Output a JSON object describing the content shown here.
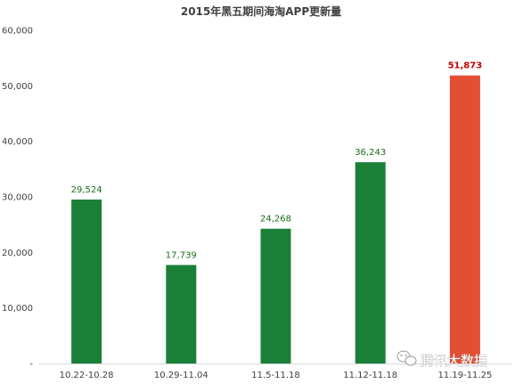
{
  "chart_data": {
    "type": "bar",
    "title": "2015年黑五期间海淘APP更新量",
    "xlabel": "",
    "ylabel": "",
    "categories": [
      "10.22-10.28",
      "10.29-11.04",
      "11.5-11.18",
      "11.12-11.18",
      "11.19-11.25"
    ],
    "values": [
      29524,
      17739,
      24268,
      36243,
      51873
    ],
    "data_labels": [
      "29,524",
      "17,739",
      "24,268",
      "36,243",
      "51,873"
    ],
    "ylim": [
      0,
      60000
    ],
    "yticks": [
      0,
      10000,
      20000,
      30000,
      40000,
      50000,
      60000
    ],
    "ytick_labels": [
      "-",
      "10,000",
      "20,000",
      "30,000",
      "40,000",
      "50,000",
      "60,000"
    ],
    "grid": false,
    "legend": "none",
    "colors": {
      "bar": "#1a8038",
      "highlight_bar": "#e34f33",
      "label": "#1a6b1a",
      "highlight_label": "#c00000"
    },
    "highlight_index": 4
  },
  "watermark": {
    "text": "腾讯大数据",
    "icon": "wechat-icon"
  }
}
